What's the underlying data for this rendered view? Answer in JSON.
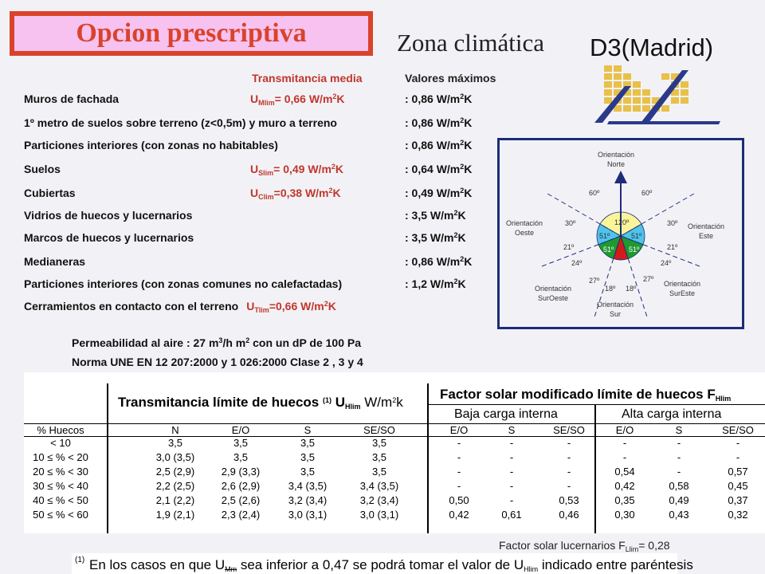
{
  "title": "Opcion prescriptiva",
  "zona_label": "Zona climática",
  "zona_code": "D3(Madrid)",
  "header": {
    "transmitancia": "Transmitancia media",
    "valores": "Valores máximos"
  },
  "rows": [
    {
      "label": "Muros de fachada",
      "mid_main": "U",
      "mid_sub": "Mlim",
      "mid_rest": "= 0,66 W/m",
      "max": ": 0,86 W/m"
    },
    {
      "label": "1º metro de suelos sobre terreno (z<0,5m) y muro a terreno",
      "max": ": 0,86 W/m"
    },
    {
      "label": "Particiones interiores (con zonas no habitables)",
      "max": ": 0,86 W/m"
    },
    {
      "label": "Suelos",
      "mid_main": "U",
      "mid_sub": "Slim",
      "mid_rest": "= 0,49 W/m",
      "max": ": 0,64 W/m"
    },
    {
      "label": "Cubiertas",
      "mid_main": "U",
      "mid_sub": "Clim",
      "mid_rest": "=0,38 W/m",
      "max": ": 0,49 W/m"
    },
    {
      "label": "Vidrios de huecos y lucernarios",
      "max": ": 3,5 W/m"
    },
    {
      "label": "Marcos de huecos y lucernarios",
      "max": ": 3,5 W/m"
    },
    {
      "label": "Medianeras",
      "max": ": 0,86 W/m"
    },
    {
      "label": "Particiones interiores (con zonas comunes no calefactadas)",
      "max": ": 1,2 W/m"
    },
    {
      "label": "Cerramientos en contacto con el terreno",
      "inl_main": "U",
      "inl_sub": "Tlim",
      "inl_rest": "=0,66 W/m"
    }
  ],
  "units": {
    "sq": "2",
    "k": "K"
  },
  "orientation": {
    "labels": {
      "norte": [
        "Orientación",
        "Norte"
      ],
      "este": [
        "Orientación",
        "Este"
      ],
      "oeste": [
        "Orientación",
        "Oeste"
      ],
      "sureste": [
        "Orientación",
        "SurEste"
      ],
      "suroeste": [
        "Orientación",
        "SurOeste"
      ],
      "sur": [
        "Orientación",
        "Sur"
      ]
    },
    "angles": {
      "n": "120º",
      "ne": "51º",
      "nw": "51º",
      "se": "51º",
      "sw": "51º",
      "a60l": "60º",
      "a60r": "60º",
      "a30l": "30º",
      "a30r": "30º",
      "a21l": "21º",
      "a21r": "21º",
      "a24l": "24º",
      "a24r": "24º",
      "a27l": "27º",
      "a27r": "27º",
      "a18l": "18º",
      "a18r": "18º"
    },
    "colors": {
      "north": "#fbf59a",
      "east_west": "#4fc3ec",
      "south_side": "#1e9a2e",
      "south": "#d41b1b"
    }
  },
  "perm": {
    "line1_a": "Permeabilidad al aire   : 27 m",
    "line1_sup1": "3",
    "line1_b": "/h m",
    "line1_sup2": "2",
    "line1_c": " con un dP de 100 Pa",
    "line2": "Norma UNE EN 12 207:2000 y 1 026:2000 Clase  2 , 3 y 4"
  },
  "table": {
    "title_left": "Transmitancia límite de huecos",
    "title_left_note": "(1)",
    "title_left_sym": "U",
    "title_left_sub": "Hlim",
    "title_left_unit": "W/m",
    "title_left_unit_sup": "2",
    "title_left_unit_k": "k",
    "title_right": "Factor solar modificado límite de huecos F",
    "title_right_sub": "Hlim",
    "sub_baja": "Baja carga interna",
    "sub_alta": "Alta carga interna",
    "headers": [
      "% Huecos",
      "N",
      "E/O",
      "S",
      "SE/SO",
      "E/O",
      "S",
      "SE/SO",
      "E/O",
      "S",
      "SE/SO"
    ],
    "rows": [
      [
        "< 10",
        "3,5",
        "3,5",
        "3,5",
        "3,5",
        "-",
        "-",
        "-",
        "-",
        "-",
        "-"
      ],
      [
        "10 ≤ % < 20",
        "3,0 (3,5)",
        "3,5",
        "3,5",
        "3,5",
        "-",
        "-",
        "-",
        "-",
        "-",
        "-"
      ],
      [
        "20 ≤ % < 30",
        "2,5 (2,9)",
        "2,9 (3,3)",
        "3,5",
        "3,5",
        "-",
        "-",
        "-",
        "0,54",
        "-",
        "0,57"
      ],
      [
        "30 ≤ % < 40",
        "2,2 (2,5)",
        "2,6 (2,9)",
        "3,4 (3,5)",
        "3,4 (3,5)",
        "-",
        "-",
        "-",
        "0,42",
        "0,58",
        "0,45"
      ],
      [
        "40 ≤ % < 50",
        "2,1 (2,2)",
        "2,5 (2,6)",
        "3,2 (3,4)",
        "3,2 (3,4)",
        "0,50",
        "-",
        "0,53",
        "0,35",
        "0,49",
        "0,37"
      ],
      [
        "50 ≤ % < 60",
        "1,9 (2,1)",
        "2,3 (2,4)",
        "3,0 (3,1)",
        "3,0 (3,1)",
        "0,42",
        "0,61",
        "0,46",
        "0,30",
        "0,43",
        "0,32"
      ]
    ]
  },
  "footer": {
    "solar_a": "Factor solar lucernarios F",
    "solar_sub": "Llim",
    "solar_b": "=  0,28",
    "note_marker": "(1)",
    "note_a": "En los casos en que U",
    "note_sub": "Mm",
    "note_b": " sea inferior a 0,47 se podrá tomar el valor de U",
    "note_sub2": "Hlim",
    "note_c": " indicado entre paréntesis"
  }
}
